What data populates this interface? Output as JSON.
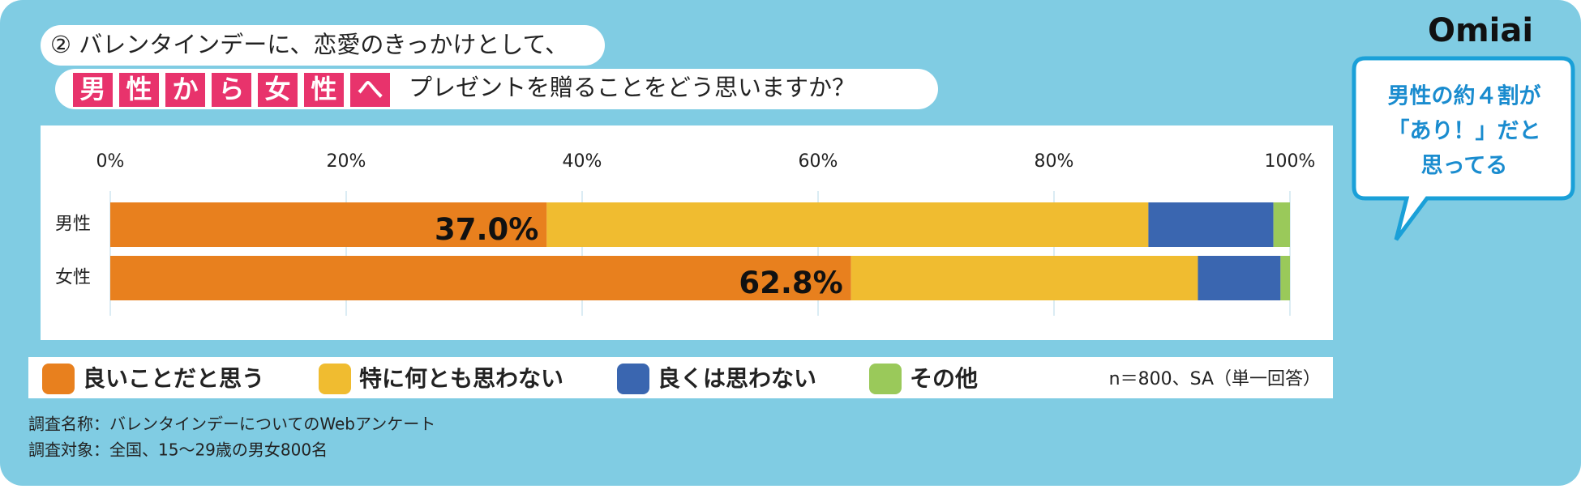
{
  "header": {
    "title_line1": "② バレンタインデーに、恋愛のきっかけとして、",
    "title_highlight": [
      "男",
      "性",
      "か",
      "ら",
      "女",
      "性",
      "へ"
    ],
    "title_line2": "プレゼントを贈ることをどう思いますか？"
  },
  "logo": "Omiai",
  "callout": [
    "男性の約４割が",
    "「あり！」だと",
    "思ってる"
  ],
  "chart_data": {
    "type": "bar",
    "orientation": "horizontal",
    "stacked": true,
    "categories": [
      "男性",
      "女性"
    ],
    "series": [
      {
        "name": "良いことだと思う",
        "color": "#e8801e",
        "values": [
          37.0,
          62.8
        ],
        "value_labels": [
          "37.0%",
          "62.8%"
        ]
      },
      {
        "name": "特に何とも思わない",
        "color": "#f0bc30",
        "values": [
          51.0,
          29.4
        ]
      },
      {
        "name": "良くは思わない",
        "color": "#3a66b0",
        "values": [
          10.6,
          7.0
        ]
      },
      {
        "name": "その他",
        "color": "#9ac95a",
        "values": [
          1.4,
          0.8
        ]
      }
    ],
    "xlim": [
      0,
      100
    ],
    "xticks": [
      {
        "value": 0,
        "label": "0%"
      },
      {
        "value": 20,
        "label": "20%"
      },
      {
        "value": 40,
        "label": "40%"
      },
      {
        "value": 60,
        "label": "60%"
      },
      {
        "value": 80,
        "label": "80%"
      },
      {
        "value": 100,
        "label": "100%"
      }
    ],
    "grid": true,
    "note": "n＝800、SA（単一回答）"
  },
  "footnotes": [
    "調査名称：バレンタインデーについてのWebアンケート",
    "調査対象：全国、15～29歳の男女800名"
  ]
}
